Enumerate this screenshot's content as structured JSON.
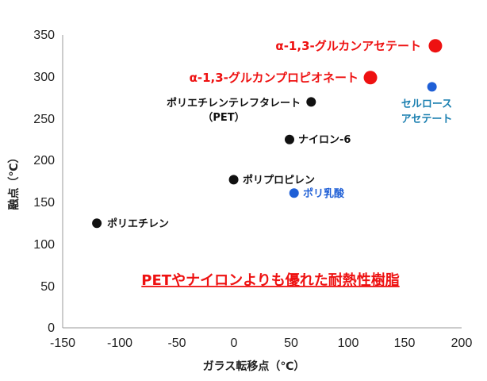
{
  "chart_data": {
    "type": "scatter",
    "xlabel": "ガラス転移点（℃）",
    "ylabel": "融点（℃）",
    "xlim": [
      -150,
      200
    ],
    "ylim": [
      0,
      350
    ],
    "xticks": [
      "-150",
      "-100",
      "-50",
      "0",
      "50",
      "100",
      "150",
      "200"
    ],
    "yticks": [
      "0",
      "50",
      "100",
      "150",
      "200",
      "250",
      "300",
      "350"
    ],
    "grid": false,
    "points": [
      {
        "label": "α-1,3-グルカンアセテート",
        "x": 177,
        "y": 337,
        "color": "#ee1111",
        "size": "large"
      },
      {
        "label": "α-1,3-グルカンプロピオネート",
        "x": 120,
        "y": 299,
        "color": "#ee1111",
        "size": "large"
      },
      {
        "label": "セルロースアセテート",
        "x": 174,
        "y": 288,
        "color": "#1f5fd6",
        "size": "small"
      },
      {
        "label": "ポリエチレンテレフタレート（PET）",
        "x": 68,
        "y": 270,
        "color": "#111111",
        "size": "small"
      },
      {
        "label": "ナイロン-6",
        "x": 49,
        "y": 225,
        "color": "#111111",
        "size": "small"
      },
      {
        "label": "ポリプロピレン",
        "x": 0,
        "y": 177,
        "color": "#111111",
        "size": "small"
      },
      {
        "label": "ポリ乳酸",
        "x": 53,
        "y": 161,
        "color": "#1f5fd6",
        "size": "small"
      },
      {
        "label": "ポリエチレン",
        "x": -120,
        "y": 125,
        "color": "#111111",
        "size": "small"
      }
    ],
    "annotation": "PETやナイロンよりも優れた耐熱性樹脂"
  },
  "labels": {
    "glucan_acetate": "α-1,3-グルカンアセテート",
    "glucan_propionate": "α-1,3-グルカンプロピオネート",
    "cellulose_line1": "セルロース",
    "cellulose_line2": "アセテート",
    "pet_line1": "ポリエチレンテレフタレート",
    "pet_line2": "（PET）",
    "nylon": "ナイロン-6",
    "pp": "ポリプロピレン",
    "pla": "ポリ乳酸",
    "pe": "ポリエチレン"
  },
  "colors": {
    "red": "#ee1111",
    "blue": "#1f5fd6",
    "label_blue": "#1a7fb0",
    "black": "#111111",
    "axis": "#999999"
  }
}
